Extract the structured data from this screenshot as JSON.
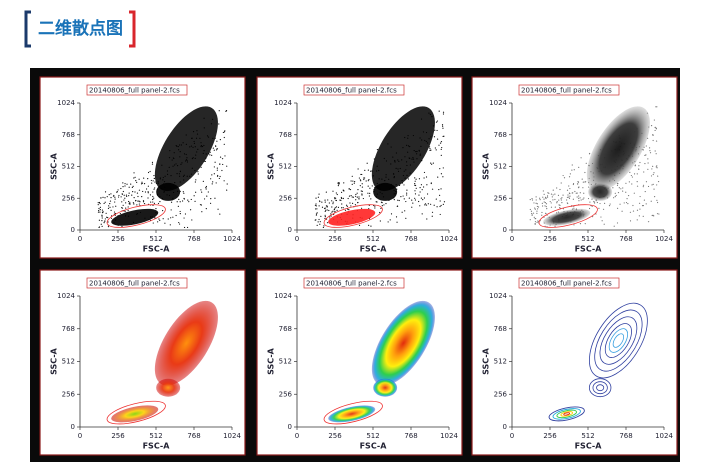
{
  "header": {
    "title": "二维散点图"
  },
  "panels": [
    {
      "title": "20140806_full panel-2.fcs",
      "x_label": "FSC-A",
      "y_label": "SSC-A",
      "x_ticks": [
        0,
        256,
        512,
        768,
        1024
      ],
      "y_ticks": [
        0,
        256,
        512,
        768,
        1024
      ]
    },
    {
      "title": "20140806_full panel-2.fcs",
      "x_label": "FSC-A",
      "y_label": "SSC-A",
      "x_ticks": [
        0,
        256,
        512,
        768,
        1024
      ],
      "y_ticks": [
        0,
        256,
        512,
        768,
        1024
      ]
    },
    {
      "title": "20140806_full panel-2.fcs",
      "x_label": "FSC-A",
      "y_label": "SSC-A",
      "x_ticks": [
        0,
        256,
        512,
        768,
        1024
      ],
      "y_ticks": [
        0,
        256,
        512,
        768,
        1024
      ]
    },
    {
      "title": "20140806_full panel-2.fcs",
      "x_label": "FSC-A",
      "y_label": "SSC-A",
      "x_ticks": [
        0,
        256,
        512,
        768,
        1024
      ],
      "y_ticks": [
        0,
        256,
        512,
        768,
        1024
      ]
    },
    {
      "title": "20140806_full panel-2.fcs",
      "x_label": "FSC-A",
      "y_label": "SSC-A",
      "x_ticks": [
        0,
        256,
        512,
        768,
        1024
      ],
      "y_ticks": [
        0,
        256,
        512,
        768,
        1024
      ]
    },
    {
      "title": "20140806_full panel-2.fcs",
      "x_label": "FSC-A",
      "y_label": "SSC-A",
      "x_ticks": [
        0,
        256,
        512,
        768,
        1024
      ],
      "y_ticks": [
        0,
        256,
        512,
        768,
        1024
      ]
    }
  ]
}
